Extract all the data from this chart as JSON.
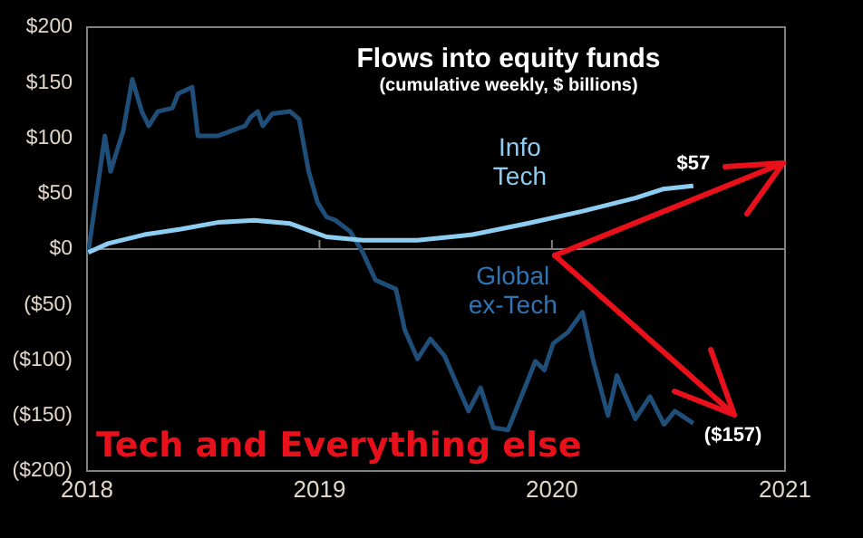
{
  "chart_data": {
    "type": "line",
    "title": "Flows into equity funds",
    "subtitle": "(cumulative weekly, $ billions)",
    "annotations": [
      "Tech and Everything else"
    ],
    "xlim": [
      "2018",
      "2021"
    ],
    "xticks": [
      "2018",
      "2019",
      "2020",
      "2021"
    ],
    "ylim": [
      -200,
      200
    ],
    "yticks": [
      {
        "value": -200,
        "label": "($200)"
      },
      {
        "value": -150,
        "label": "($150)"
      },
      {
        "value": -100,
        "label": "($100)"
      },
      {
        "value": -50,
        "label": "($50)"
      },
      {
        "value": 0,
        "label": "$0"
      },
      {
        "value": 50,
        "label": "$50"
      },
      {
        "value": 100,
        "label": "$100"
      },
      {
        "value": 150,
        "label": "$150"
      },
      {
        "value": 200,
        "label": "$200"
      }
    ],
    "ref_lines": [
      {
        "axis": "y",
        "value": 0,
        "color": "#808080"
      }
    ],
    "grid": false,
    "legend": false,
    "marker": "none",
    "line_style": "solid",
    "series": [
      {
        "name": "Info Tech",
        "color": "#8ecdf2",
        "x": [
          "2018-01-03",
          "2018-02-03",
          "2018-04-01",
          "2018-05-28",
          "2018-07-25",
          "2018-09-20",
          "2018-11-16",
          "2019-01-12",
          "2019-03-10",
          "2019-06-04",
          "2019-08-29",
          "2019-11-23",
          "2020-02-17",
          "2020-05-11",
          "2020-06-23",
          "2020-08-10"
        ],
        "values": [
          -3,
          5,
          13,
          18,
          24,
          26,
          23,
          11,
          8,
          8,
          13,
          23,
          34,
          46,
          54,
          57
        ],
        "value_labels": [
          null,
          null,
          null,
          null,
          null,
          null,
          null,
          null,
          null,
          null,
          null,
          null,
          null,
          null,
          null,
          "$57"
        ]
      },
      {
        "name": "Global ex-Tech",
        "color": "#1f4e79",
        "x": [
          "2018-01-03",
          "2018-01-29",
          "2018-02-07",
          "2018-02-27",
          "2018-03-13",
          "2018-03-28",
          "2018-04-08",
          "2018-04-22",
          "2018-05-15",
          "2018-05-24",
          "2018-06-15",
          "2018-06-24",
          "2018-07-25",
          "2018-09-06",
          "2018-09-15",
          "2018-09-26",
          "2018-10-04",
          "2018-10-19",
          "2018-11-16",
          "2018-11-30",
          "2018-12-15",
          "2018-12-29",
          "2019-01-12",
          "2019-01-26",
          "2019-02-18",
          "2019-03-10",
          "2019-03-30",
          "2019-05-01",
          "2019-05-15",
          "2019-06-04",
          "2019-06-24",
          "2019-07-16",
          "2019-08-23",
          "2019-09-11",
          "2019-10-01",
          "2019-10-24",
          "2019-11-16",
          "2019-12-06",
          "2019-12-20",
          "2020-01-03",
          "2020-01-26",
          "2020-02-18",
          "2020-03-06",
          "2020-03-29",
          "2020-04-12",
          "2020-05-11",
          "2020-06-03",
          "2020-06-25",
          "2020-07-12",
          "2020-08-10"
        ],
        "values": [
          -3,
          102,
          70,
          107,
          153,
          124,
          111,
          124,
          127,
          140,
          146,
          102,
          102,
          111,
          119,
          124,
          111,
          122,
          124,
          117,
          70,
          42,
          29,
          26,
          16,
          -3,
          -28,
          -36,
          -73,
          -99,
          -81,
          -96,
          -146,
          -125,
          -161,
          -163,
          -130,
          -101,
          -109,
          -85,
          -75,
          -57,
          -101,
          -150,
          -114,
          -153,
          -133,
          -158,
          -146,
          -157
        ],
        "value_labels": [
          null,
          null,
          null,
          null,
          null,
          null,
          null,
          null,
          null,
          null,
          null,
          null,
          null,
          null,
          null,
          null,
          null,
          null,
          null,
          null,
          null,
          null,
          null,
          null,
          null,
          null,
          null,
          null,
          null,
          null,
          null,
          null,
          null,
          null,
          null,
          null,
          null,
          null,
          null,
          null,
          null,
          null,
          null,
          null,
          null,
          null,
          null,
          null,
          null,
          "($157)"
        ]
      }
    ]
  }
}
